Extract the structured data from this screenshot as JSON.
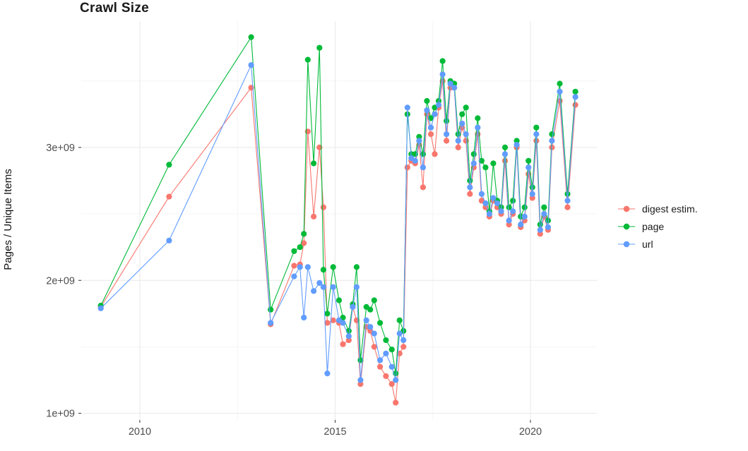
{
  "title": "Crawl Size",
  "y_axis_label": "Pages / Unique Items",
  "legend": {
    "items": [
      {
        "label": "digest estim.",
        "color": "#F8766D"
      },
      {
        "label": "page",
        "color": "#00BA38"
      },
      {
        "label": "url",
        "color": "#619CFF"
      }
    ]
  },
  "chart_data": {
    "type": "line",
    "title": "Crawl Size",
    "xlabel": "",
    "ylabel": "Pages / Unique Items",
    "xlim": [
      2008.5,
      2021.7
    ],
    "ylim": [
      950000000.0,
      3950000000.0
    ],
    "grid": true,
    "legend_position": "right",
    "background": "#FFFFFF",
    "grid_color_major": "#EBEBEB",
    "grid_color_minor": "#F5F5F5",
    "x_ticks": [
      2010,
      2015,
      2020
    ],
    "x_tick_labels": [
      "2010",
      "2015",
      "2020"
    ],
    "x_minor_ticks": [
      2012.5,
      2017.5
    ],
    "y_ticks": [
      1000000000.0,
      2000000000.0,
      3000000000.0
    ],
    "y_tick_labels": [
      "1e+09",
      "2e+09",
      "3e+09"
    ],
    "y_minor_ticks": [
      1500000000.0,
      2500000000.0,
      3500000000.0
    ],
    "x": [
      2009.0,
      2010.75,
      2012.85,
      2013.35,
      2013.95,
      2014.1,
      2014.2,
      2014.3,
      2014.45,
      2014.6,
      2014.7,
      2014.8,
      2014.95,
      2015.1,
      2015.2,
      2015.35,
      2015.45,
      2015.55,
      2015.65,
      2015.8,
      2015.9,
      2016.0,
      2016.15,
      2016.3,
      2016.45,
      2016.55,
      2016.65,
      2016.75,
      2016.85,
      2016.95,
      2017.05,
      2017.15,
      2017.25,
      2017.35,
      2017.45,
      2017.55,
      2017.65,
      2017.75,
      2017.85,
      2017.95,
      2018.05,
      2018.15,
      2018.25,
      2018.35,
      2018.45,
      2018.55,
      2018.65,
      2018.75,
      2018.85,
      2018.95,
      2019.05,
      2019.15,
      2019.25,
      2019.35,
      2019.45,
      2019.55,
      2019.65,
      2019.75,
      2019.85,
      2019.95,
      2020.05,
      2020.15,
      2020.25,
      2020.35,
      2020.45,
      2020.55,
      2020.75,
      2020.95,
      2021.15
    ],
    "series": [
      {
        "name": "digest estim.",
        "color": "#F8766D",
        "values": [
          1800000000.0,
          2630000000.0,
          3450000000.0,
          1670000000.0,
          2110000000.0,
          2120000000.0,
          2280000000.0,
          3120000000.0,
          2480000000.0,
          3000000000.0,
          2550000000.0,
          1680000000.0,
          1700000000.0,
          1680000000.0,
          1520000000.0,
          1550000000.0,
          1800000000.0,
          1700000000.0,
          1220000000.0,
          1650000000.0,
          1620000000.0,
          1500000000.0,
          1350000000.0,
          1280000000.0,
          1220000000.0,
          1080000000.0,
          1450000000.0,
          1500000000.0,
          2850000000.0,
          2900000000.0,
          2880000000.0,
          3020000000.0,
          2700000000.0,
          3250000000.0,
          3100000000.0,
          2950000000.0,
          3300000000.0,
          3500000000.0,
          3050000000.0,
          3450000000.0,
          3450000000.0,
          3000000000.0,
          3150000000.0,
          3050000000.0,
          2650000000.0,
          2850000000.0,
          3100000000.0,
          2600000000.0,
          2550000000.0,
          2480000000.0,
          2600000000.0,
          2550000000.0,
          2500000000.0,
          2900000000.0,
          2420000000.0,
          2500000000.0,
          3000000000.0,
          2400000000.0,
          2450000000.0,
          2800000000.0,
          2620000000.0,
          3050000000.0,
          2350000000.0,
          2480000000.0,
          2380000000.0,
          3000000000.0,
          3350000000.0,
          2550000000.0,
          3320000000.0
        ]
      },
      {
        "name": "page",
        "color": "#00BA38",
        "values": [
          1810000000.0,
          2870000000.0,
          3830000000.0,
          1780000000.0,
          2220000000.0,
          2250000000.0,
          2350000000.0,
          3660000000.0,
          2880000000.0,
          3750000000.0,
          2080000000.0,
          1750000000.0,
          2100000000.0,
          1850000000.0,
          1720000000.0,
          1620000000.0,
          1820000000.0,
          2100000000.0,
          1400000000.0,
          1800000000.0,
          1780000000.0,
          1850000000.0,
          1680000000.0,
          1550000000.0,
          1480000000.0,
          1300000000.0,
          1700000000.0,
          1620000000.0,
          3250000000.0,
          2950000000.0,
          2950000000.0,
          3080000000.0,
          2950000000.0,
          3350000000.0,
          3220000000.0,
          3300000000.0,
          3350000000.0,
          3650000000.0,
          3200000000.0,
          3500000000.0,
          3480000000.0,
          3100000000.0,
          3250000000.0,
          3300000000.0,
          2750000000.0,
          2950000000.0,
          3220000000.0,
          2900000000.0,
          2850000000.0,
          2520000000.0,
          2880000000.0,
          2600000000.0,
          2550000000.0,
          3000000000.0,
          2550000000.0,
          2600000000.0,
          3050000000.0,
          2480000000.0,
          2550000000.0,
          2900000000.0,
          2700000000.0,
          3150000000.0,
          2420000000.0,
          2550000000.0,
          2450000000.0,
          3100000000.0,
          3480000000.0,
          2650000000.0,
          3420000000.0
        ]
      },
      {
        "name": "url",
        "color": "#619CFF",
        "values": [
          1790000000.0,
          2300000000.0,
          3620000000.0,
          1680000000.0,
          2030000000.0,
          2100000000.0,
          1720000000.0,
          2100000000.0,
          1920000000.0,
          1980000000.0,
          1950000000.0,
          1300000000.0,
          1950000000.0,
          1700000000.0,
          1680000000.0,
          1580000000.0,
          1800000000.0,
          1950000000.0,
          1250000000.0,
          1700000000.0,
          1650000000.0,
          1600000000.0,
          1400000000.0,
          1450000000.0,
          1350000000.0,
          1250000000.0,
          1600000000.0,
          1550000000.0,
          3300000000.0,
          2920000000.0,
          2900000000.0,
          3050000000.0,
          2850000000.0,
          3280000000.0,
          3150000000.0,
          3250000000.0,
          3320000000.0,
          3550000000.0,
          3100000000.0,
          3480000000.0,
          3450000000.0,
          3050000000.0,
          3180000000.0,
          3100000000.0,
          2700000000.0,
          2880000000.0,
          3150000000.0,
          2650000000.0,
          2580000000.0,
          2500000000.0,
          2620000000.0,
          2580000000.0,
          2520000000.0,
          2950000000.0,
          2450000000.0,
          2520000000.0,
          3020000000.0,
          2420000000.0,
          2480000000.0,
          2850000000.0,
          2650000000.0,
          3100000000.0,
          2380000000.0,
          2500000000.0,
          2400000000.0,
          3050000000.0,
          3420000000.0,
          2600000000.0,
          3380000000.0
        ]
      }
    ]
  }
}
